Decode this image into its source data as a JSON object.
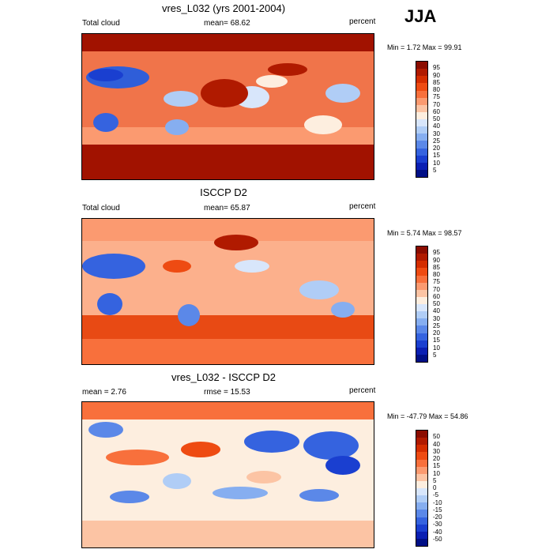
{
  "season": "JJA",
  "panels": [
    {
      "title": "vres_L032 (yrs 2001-2004)",
      "left_label": "Total cloud",
      "center_label": "mean=  68.62",
      "right_label": "percent",
      "minmax": "Min =   1.72 Max =  99.91",
      "colorbar": {
        "labels": [
          "95",
          "90",
          "85",
          "80",
          "75",
          "70",
          "60",
          "50",
          "40",
          "30",
          "25",
          "20",
          "15",
          "10",
          "5"
        ],
        "colors": [
          "#8b0c00",
          "#b01a00",
          "#d42d00",
          "#ee4b12",
          "#f8703c",
          "#fb9a70",
          "#fcc4a4",
          "#fdeedf",
          "#d8e6fb",
          "#b0cdf6",
          "#86aef0",
          "#5b88e8",
          "#3563df",
          "#1a3fd0",
          "#0a1fb3",
          "#000f86"
        ]
      }
    },
    {
      "title": "ISCCP D2",
      "left_label": "Total cloud",
      "center_label": "mean=  65.87",
      "right_label": "percent",
      "minmax": "Min =   5.74 Max =  98.57",
      "colorbar": {
        "labels": [
          "95",
          "90",
          "85",
          "80",
          "75",
          "70",
          "60",
          "50",
          "40",
          "30",
          "25",
          "20",
          "15",
          "10",
          "5"
        ],
        "colors": [
          "#8b0c00",
          "#b01a00",
          "#d42d00",
          "#ee4b12",
          "#f8703c",
          "#fb9a70",
          "#fcc4a4",
          "#fdeedf",
          "#d8e6fb",
          "#b0cdf6",
          "#86aef0",
          "#5b88e8",
          "#3563df",
          "#1a3fd0",
          "#0a1fb3",
          "#000f86"
        ]
      }
    },
    {
      "title": "vres_L032 - ISCCP D2",
      "left_label": "mean =   2.76",
      "center_label": "rmse =  15.53",
      "right_label": "percent",
      "minmax": "Min = -47.79 Max =  54.86",
      "colorbar": {
        "labels": [
          "50",
          "40",
          "30",
          "20",
          "15",
          "10",
          "5",
          "0",
          "-5",
          "-10",
          "-15",
          "-20",
          "-30",
          "-40",
          "-50"
        ],
        "colors": [
          "#8b0c00",
          "#b01a00",
          "#d42d00",
          "#ee4b12",
          "#f8703c",
          "#fb9a70",
          "#fcc4a4",
          "#fdeedf",
          "#d8e6fb",
          "#b0cdf6",
          "#86aef0",
          "#5b88e8",
          "#3563df",
          "#1a3fd0",
          "#0a1fb3",
          "#000f86"
        ]
      }
    }
  ]
}
